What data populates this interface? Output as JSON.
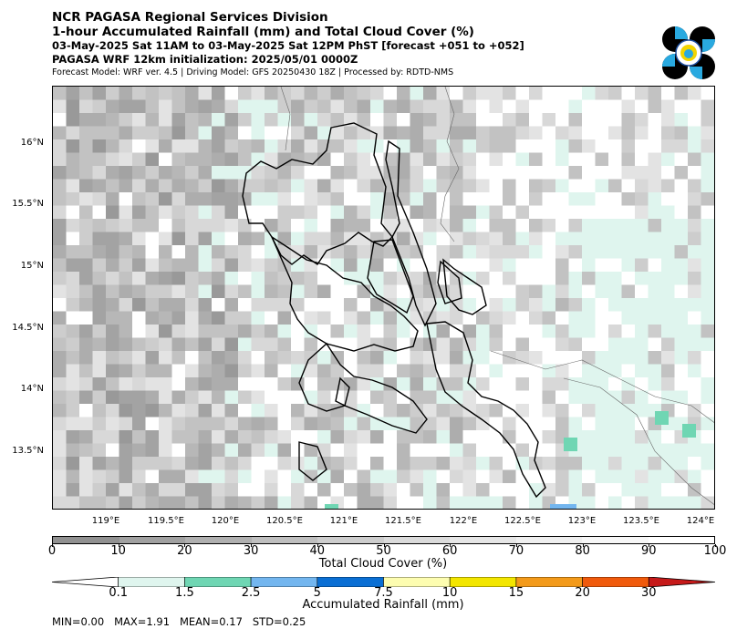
{
  "header": {
    "org": "NCR PAGASA Regional Services Division",
    "product": "1-hour Accumulated Rainfall (mm) and Total Cloud Cover (%)",
    "valid_time": "03-May-2025 Sat 11AM to 03-May-2025 Sat 12PM PhST [forecast +051 to +052]",
    "init": "PAGASA WRF 12km initialization: 2025/05/01 0000Z",
    "model_info": "Forecast Model: WRF ver. 4.5 | Driving Model: GFS 20250430 18Z | Processed by: RDTD-NMS"
  },
  "map": {
    "lat_labels": [
      "16°N",
      "15.5°N",
      "15°N",
      "14.5°N",
      "14°N",
      "13.5°N"
    ],
    "lon_labels": [
      "119°E",
      "119.5°E",
      "120°E",
      "120.5°E",
      "121°E",
      "121.5°E",
      "122°E",
      "122.5°E",
      "123°E",
      "123.5°E",
      "124°E"
    ]
  },
  "cloud_colorbar": {
    "title": "Total Cloud Cover (%)",
    "ticks": [
      "0",
      "10",
      "20",
      "30",
      "40",
      "50",
      "60",
      "70",
      "80",
      "90",
      "100"
    ],
    "colors": [
      "#919191",
      "#a1a1a1",
      "#b0b0b0",
      "#bfbfbf",
      "#cdcdcd",
      "#dbdbdb",
      "#e6e6e6",
      "#efefef",
      "#f7f7f7",
      "#ffffff"
    ]
  },
  "rain_colorbar": {
    "title": "Accumulated Rainfall (mm)",
    "ticks": [
      "0.1",
      "1.5",
      "2.5",
      "5",
      "7.5",
      "10",
      "15",
      "20",
      "30"
    ],
    "colors": [
      "#ffffff",
      "#dff5ee",
      "#6fd6b3",
      "#73b6ef",
      "#0a6fd4",
      "#fdfdb0",
      "#f3e600",
      "#f39a1a",
      "#f05a0c",
      "#c61a1a"
    ]
  },
  "stats": {
    "text": "MIN=0.00   MAX=1.91   MEAN=0.17   STD=0.25"
  }
}
